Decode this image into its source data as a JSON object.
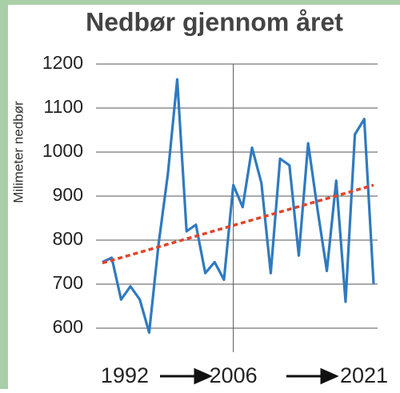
{
  "chart_data": {
    "type": "line",
    "title": "Nedbør gjennom året",
    "y_label": "Milimeter nedbør",
    "x": [
      1992,
      1993,
      1994,
      1995,
      1996,
      1997,
      1998,
      1999,
      2000,
      2001,
      2002,
      2003,
      2004,
      2005,
      2006,
      2007,
      2008,
      2009,
      2010,
      2011,
      2012,
      2013,
      2014,
      2015,
      2016,
      2017,
      2018,
      2019,
      2020,
      2021
    ],
    "series": [
      {
        "color": "#2f7ac0",
        "values": [
          750,
          760,
          665,
          695,
          665,
          590,
          790,
          950,
          1165,
          820,
          835,
          725,
          750,
          710,
          925,
          875,
          1010,
          930,
          725,
          985,
          970,
          765,
          1020,
          870,
          730,
          935,
          660,
          1040,
          1075,
          700
        ]
      }
    ],
    "trend": {
      "x": [
        1992,
        2021
      ],
      "values": [
        748,
        925
      ],
      "color": "#e0452b"
    },
    "xlim": [
      1992,
      2021
    ],
    "xticks": [
      1992,
      2006,
      2021
    ],
    "vline": 2006,
    "ylim": [
      600,
      1200
    ],
    "yticks": [
      600,
      700,
      800,
      900,
      1000,
      1100,
      1200
    ],
    "grid": true
  }
}
